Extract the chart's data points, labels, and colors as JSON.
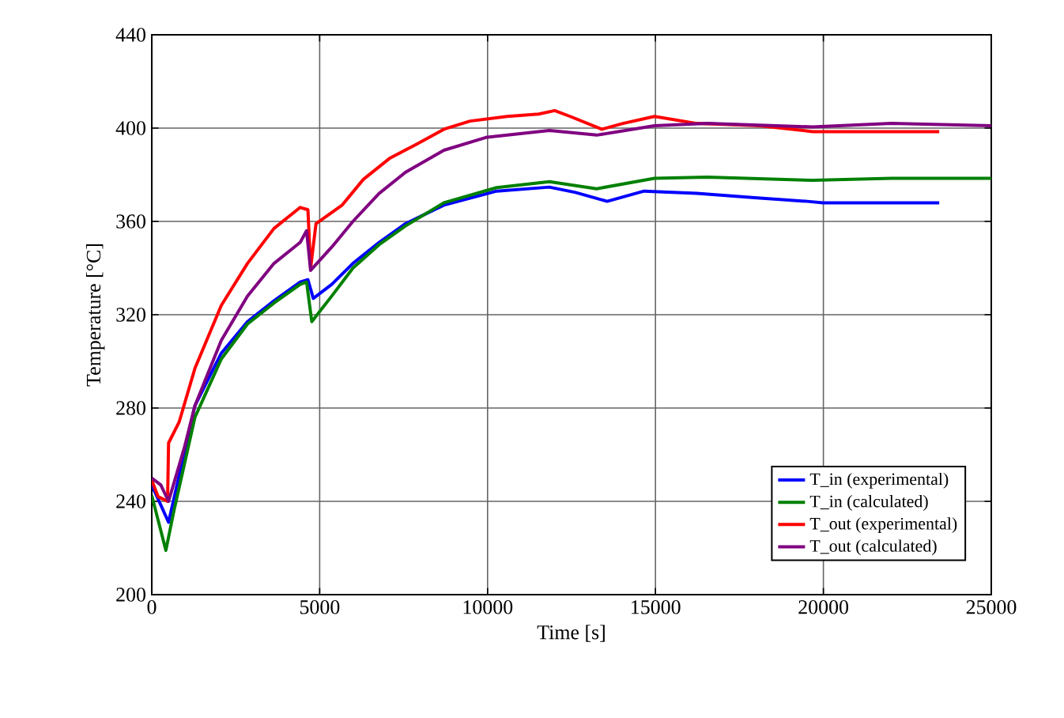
{
  "chart_data": {
    "type": "line",
    "xlabel": "Time [s]",
    "ylabel": "Temperature [°C]",
    "xlim": [
      0,
      25000
    ],
    "ylim": [
      200,
      440
    ],
    "xticks": [
      0,
      5000,
      10000,
      15000,
      20000,
      25000
    ],
    "yticks": [
      200,
      240,
      280,
      320,
      360,
      400,
      440
    ],
    "grid": true,
    "legend": "bottom right",
    "line_style": "solid",
    "marker": "none",
    "series": [
      {
        "name": "T_in (experimental)",
        "color": "#0000ff",
        "x": [
          0,
          500,
          1285,
          2070,
          2850,
          3640,
          4420,
          4650,
          4810,
          5360,
          5990,
          6770,
          7550,
          8700,
          10270,
          11840,
          12620,
          13560,
          14660,
          16230,
          18110,
          19520,
          19990,
          23450
        ],
        "values": [
          247,
          231,
          281,
          303.5,
          317,
          326,
          334,
          335,
          327,
          333,
          342,
          351,
          359,
          367,
          373,
          374.7,
          372.4,
          368.6,
          373,
          372,
          370,
          368.6,
          368,
          368
        ]
      },
      {
        "name": "T_in (calculated)",
        "color": "#008000",
        "x": [
          0,
          420,
          660,
          1285,
          2070,
          2850,
          3640,
          4420,
          4610,
          4765,
          5360,
          5990,
          6770,
          7550,
          8700,
          10270,
          11840,
          13250,
          14970,
          16540,
          19680,
          22030,
          25000
        ],
        "values": [
          242.5,
          219,
          236,
          276,
          301,
          316,
          325,
          333,
          334,
          317,
          328,
          340,
          350,
          358,
          368,
          374.5,
          377,
          374,
          378.5,
          379,
          377.6,
          378.5,
          378.5
        ]
      },
      {
        "name": "T_out (experimental)",
        "color": "#ff0000",
        "x": [
          0,
          190,
          470,
          500,
          815,
          1285,
          2070,
          2850,
          3640,
          4420,
          4650,
          4730,
          4890,
          5670,
          6300,
          7080,
          7870,
          8700,
          9480,
          10580,
          11520,
          12000,
          12460,
          13400,
          14030,
          14970,
          16230,
          18110,
          19680,
          23450
        ],
        "values": [
          249,
          242,
          240,
          265,
          274,
          297,
          324,
          342,
          357,
          366,
          365,
          340,
          359,
          367,
          378,
          387,
          393,
          399.5,
          403,
          405,
          406,
          407.5,
          405,
          399.5,
          402,
          405,
          402,
          401,
          398.5,
          398.5
        ]
      },
      {
        "name": "T_out (calculated)",
        "color": "#800080",
        "x": [
          0,
          270,
          500,
          970,
          1285,
          2070,
          2850,
          3640,
          4420,
          4610,
          4730,
          5360,
          5990,
          6770,
          7550,
          8700,
          9950,
          11840,
          13250,
          14970,
          16540,
          19680,
          22030,
          25000
        ],
        "values": [
          250,
          247,
          240,
          263,
          281,
          309,
          328,
          342,
          351,
          356,
          339,
          349,
          360,
          372,
          381,
          390.5,
          396,
          399,
          397,
          401,
          402,
          400.5,
          402,
          401
        ]
      }
    ]
  }
}
